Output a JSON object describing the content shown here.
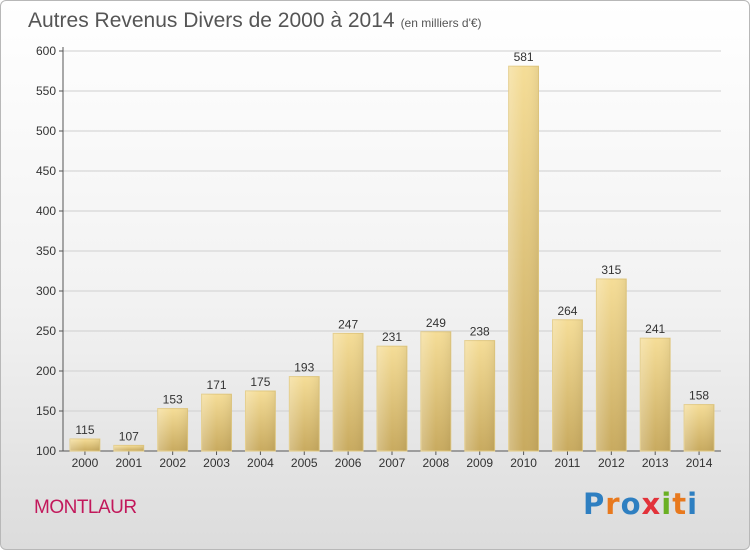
{
  "header": {
    "title": "Autres Revenus Divers de 2000 à 2014",
    "unit": "(en milliers d'€)"
  },
  "footer": {
    "commune": "MONTLAUR",
    "brand": "Proxiti"
  },
  "colors": {
    "bar_top": "#f5dd97",
    "bar_bottom": "#c8aa5f",
    "grid": "#cfcfcf",
    "commune_text": "#c2185b",
    "brand_letters": [
      "#2e7fc1",
      "#e8791e",
      "#2e7fc1",
      "#e2323a",
      "#6ab023",
      "#e8791e",
      "#2e7fc1"
    ]
  },
  "chart_data": {
    "type": "bar",
    "title": "Autres Revenus Divers de 2000 à 2014",
    "subtitle": "(en milliers d'€)",
    "xlabel": "",
    "ylabel": "",
    "categories": [
      "2000",
      "2001",
      "2002",
      "2003",
      "2004",
      "2005",
      "2006",
      "2007",
      "2008",
      "2009",
      "2010",
      "2011",
      "2012",
      "2013",
      "2014"
    ],
    "values": [
      115,
      107,
      153,
      171,
      175,
      193,
      247,
      231,
      249,
      238,
      581,
      264,
      315,
      241,
      158
    ],
    "ylim": [
      100,
      600
    ],
    "yticks": [
      100,
      150,
      200,
      250,
      300,
      350,
      400,
      450,
      500,
      550,
      600
    ],
    "grid": true,
    "data_labels": true
  }
}
